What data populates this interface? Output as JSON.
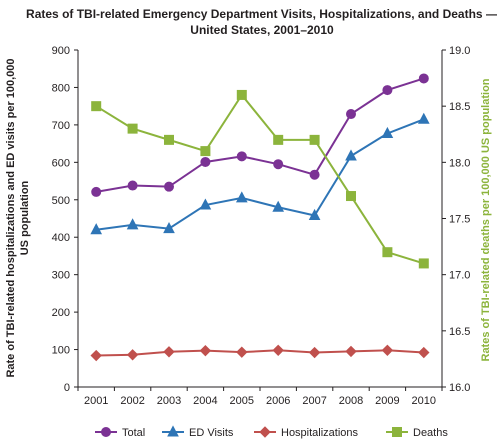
{
  "chart_data": {
    "type": "line",
    "title_line1": "Rates of TBI-related Emergency Department Visits, Hospitalizations, and Deaths —",
    "title_line2": "United States, 2001–2010",
    "ylabel_left_line1": "Rate of TBI-related hospitalizations and ED visits per 100,000",
    "ylabel_left_line2": "US population",
    "ylabel_right": "Rates of TBI-related deaths per 100,000 US population",
    "x": [
      "2001",
      "2002",
      "2003",
      "2004",
      "2005",
      "2006",
      "2007",
      "2008",
      "2009",
      "2010"
    ],
    "ylim_left": [
      0,
      900
    ],
    "yticks_left": [
      "0",
      "100",
      "200",
      "300",
      "400",
      "500",
      "600",
      "700",
      "800",
      "900"
    ],
    "ylim_right": [
      16.0,
      19.0
    ],
    "yticks_right": [
      "16.0",
      "16.5",
      "17.0",
      "17.5",
      "18.0",
      "18.5",
      "19.0"
    ],
    "grid": false,
    "legend_position": "bottom",
    "series": [
      {
        "name": "Total",
        "axis": "left",
        "color": "#7b3294",
        "marker": "circle",
        "values": [
          521,
          538,
          535,
          601,
          616,
          595,
          567,
          729,
          793,
          824
        ]
      },
      {
        "name": "ED Visits",
        "axis": "left",
        "color": "#2e75b6",
        "marker": "triangle",
        "values": [
          420,
          433,
          423,
          486,
          505,
          480,
          458,
          617,
          677,
          715
        ]
      },
      {
        "name": "Hospitalizations",
        "axis": "left",
        "color": "#c0504d",
        "marker": "diamond",
        "values": [
          84,
          86,
          94,
          97,
          93,
          98,
          92,
          95,
          98,
          92
        ]
      },
      {
        "name": "Deaths",
        "axis": "right",
        "color": "#8cb43c",
        "marker": "square",
        "values": [
          18.5,
          18.3,
          18.2,
          18.1,
          18.6,
          18.2,
          18.2,
          17.7,
          17.2,
          17.1
        ]
      }
    ]
  }
}
